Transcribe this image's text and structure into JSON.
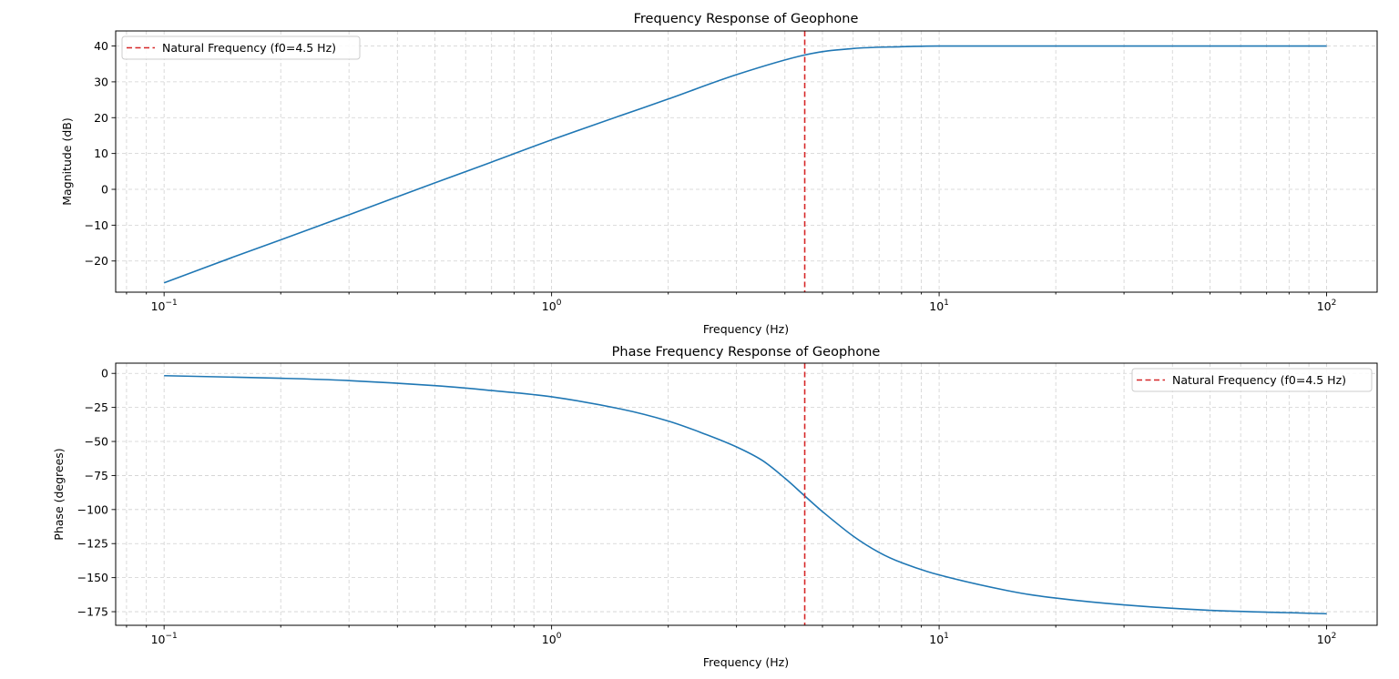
{
  "figure": {
    "colors": {
      "series": "#1f77b4",
      "marker": "#d62728",
      "grid": "#d0d0d0",
      "axis": "#000000"
    }
  },
  "chart_data": [
    {
      "type": "line",
      "title": "Frequency Response of Geophone",
      "xlabel": "Frequency (Hz)",
      "ylabel": "Magnitude (dB)",
      "xscale": "log",
      "xlim": [
        0.075,
        135
      ],
      "ylim": [
        -28.7,
        44.2
      ],
      "xticks": [
        {
          "value": 0.1,
          "base": "10",
          "exp": "−1"
        },
        {
          "value": 1,
          "base": "10",
          "exp": "0"
        },
        {
          "value": 10,
          "base": "10",
          "exp": "1"
        },
        {
          "value": 100,
          "base": "10",
          "exp": "2"
        }
      ],
      "yticks": [
        {
          "value": 40,
          "label": "40"
        },
        {
          "value": 30,
          "label": "30"
        },
        {
          "value": 20,
          "label": "20"
        },
        {
          "value": 10,
          "label": "10"
        },
        {
          "value": 0,
          "label": "0"
        },
        {
          "value": -10,
          "label": "−10"
        },
        {
          "value": -20,
          "label": "−20"
        }
      ],
      "grid": true,
      "legend_position": "upper-left",
      "series": [
        {
          "name": "Magnitude",
          "x": [
            0.1,
            0.15,
            0.2,
            0.3,
            0.5,
            0.7,
            1.0,
            1.5,
            2.0,
            3.0,
            4.5,
            6.0,
            8.0,
            10.0,
            20.0,
            50.0,
            100.0
          ],
          "values": [
            -26.1,
            -19.0,
            -14.1,
            -7.1,
            1.8,
            7.6,
            13.8,
            20.5,
            25.2,
            32.0,
            37.5,
            39.3,
            39.8,
            40.0,
            40.0,
            40.0,
            40.0
          ]
        }
      ],
      "vline": {
        "x": 4.5,
        "legend": "Natural Frequency (f0=4.5 Hz)"
      }
    },
    {
      "type": "line",
      "title": "Phase Frequency Response of Geophone",
      "xlabel": "Frequency (Hz)",
      "ylabel": "Phase (degrees)",
      "xscale": "log",
      "xlim": [
        0.075,
        135
      ],
      "ylim": [
        -185,
        7.5
      ],
      "xticks": [
        {
          "value": 0.1,
          "base": "10",
          "exp": "−1"
        },
        {
          "value": 1,
          "base": "10",
          "exp": "0"
        },
        {
          "value": 10,
          "base": "10",
          "exp": "1"
        },
        {
          "value": 100,
          "base": "10",
          "exp": "2"
        }
      ],
      "yticks": [
        {
          "value": 0,
          "label": "0"
        },
        {
          "value": -25,
          "label": "−25"
        },
        {
          "value": -50,
          "label": "−50"
        },
        {
          "value": -75,
          "label": "−75"
        },
        {
          "value": -100,
          "label": "−100"
        },
        {
          "value": -125,
          "label": "−125"
        },
        {
          "value": -150,
          "label": "−150"
        },
        {
          "value": -175,
          "label": "−175"
        }
      ],
      "grid": true,
      "legend_position": "upper-right",
      "series": [
        {
          "name": "Phase",
          "x": [
            0.1,
            0.2,
            0.3,
            0.5,
            0.7,
            1.0,
            1.5,
            2.0,
            2.5,
            3.0,
            3.5,
            4.0,
            4.5,
            5.0,
            6.0,
            7.0,
            8.0,
            10.0,
            15.0,
            20.0,
            30.0,
            50.0,
            100.0
          ],
          "values": [
            -1.7,
            -3.6,
            -5.3,
            -9.0,
            -12.6,
            -17.2,
            -26.0,
            -35.0,
            -44.8,
            -54.0,
            -64.0,
            -77.0,
            -90.0,
            -101.5,
            -119.5,
            -131.5,
            -139.0,
            -148.0,
            -159.5,
            -165.0,
            -170.0,
            -174.0,
            -176.5
          ]
        }
      ],
      "vline": {
        "x": 4.5,
        "legend": "Natural Frequency (f0=4.5 Hz)"
      }
    }
  ]
}
